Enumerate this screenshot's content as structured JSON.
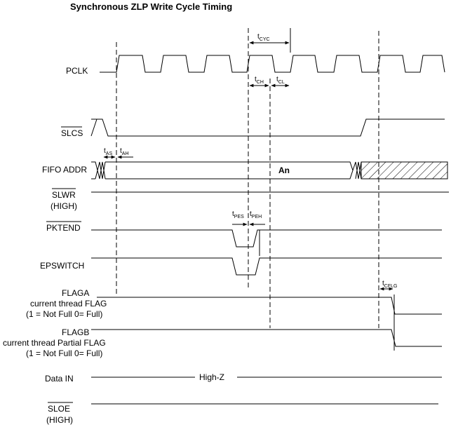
{
  "title": "Synchronous  ZLP Write Cycle Timing",
  "signals": {
    "pclk": "PCLK",
    "slcs": "SLCS",
    "fifo_addr": "FIFO ADDR",
    "slwr_line1": "SLWR",
    "slwr_line2": "(HIGH)",
    "pktend": "PKTEND",
    "epswitch": "EPSWITCH",
    "flaga_line1": "FLAGA",
    "flaga_line2": "current thread FLAG",
    "flaga_line3": "(1 = Not Full 0= Full)",
    "flagb_line1": "FLAGB",
    "flagb_line2": "current thread Partial FLAG",
    "flagb_line3": "(1 = Not Full 0= Full)",
    "data_in": "Data IN",
    "sloe_line1": "SLOE",
    "sloe_line2": "(HIGH)"
  },
  "bus_values": {
    "fifo_addr": "An",
    "data_in": "High-Z"
  },
  "timing": {
    "tcyc": {
      "main": "t",
      "sub": "CYC"
    },
    "tch": {
      "main": "t",
      "sub": "CH"
    },
    "tcl": {
      "main": "t",
      "sub": "CL"
    },
    "tas": {
      "main": "t",
      "sub": "AS"
    },
    "tah": {
      "main": "t",
      "sub": "AH"
    },
    "tpes": {
      "main": "t",
      "sub": "PES"
    },
    "tpeh": {
      "main": "t",
      "sub": "PEH"
    },
    "tcflg": {
      "main": "t",
      "sub": "CFLG"
    }
  }
}
